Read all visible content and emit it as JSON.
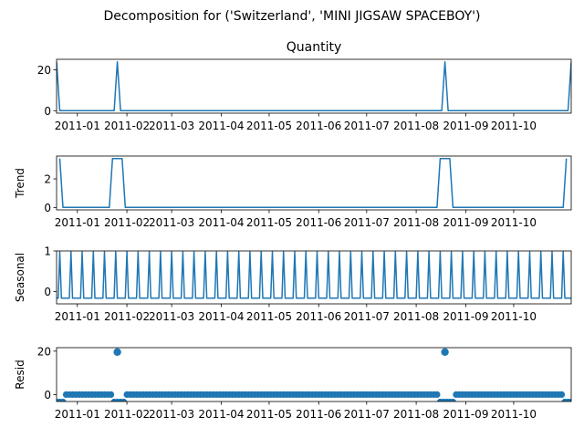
{
  "chart_data": {
    "type": "line",
    "title": "Decomposition for ('Switzerland', 'MINI JIGSAW SPACEBOY')",
    "x_tick_labels": [
      "2011-01",
      "2011-02",
      "2011-03",
      "2011-04",
      "2011-05",
      "2011-06",
      "2011-07",
      "2011-08",
      "2011-09",
      "2011-10"
    ],
    "x_tick_dates": [
      "2011-01-01",
      "2011-02-01",
      "2011-03-01",
      "2011-04-01",
      "2011-05-01",
      "2011-06-01",
      "2011-07-01",
      "2011-08-01",
      "2011-09-01",
      "2011-10-01"
    ],
    "xlim": [
      "2010-12-19",
      "2011-11-06"
    ],
    "color": "#1f77b4",
    "panels": [
      {
        "name": "observed",
        "title": "Quantity",
        "ylabel": "",
        "kind": "line",
        "ylim": [
          -1.2,
          25.2
        ],
        "yticks": [
          0,
          20
        ],
        "points": [
          [
            "2010-12-19",
            24
          ],
          [
            "2010-12-21",
            0
          ],
          [
            "2011-01-24",
            0
          ],
          [
            "2011-01-26",
            24
          ],
          [
            "2011-01-28",
            0
          ],
          [
            "2011-08-17",
            0
          ],
          [
            "2011-08-19",
            24
          ],
          [
            "2011-08-21",
            0
          ],
          [
            "2011-11-04",
            0
          ],
          [
            "2011-11-06",
            24
          ]
        ]
      },
      {
        "name": "trend",
        "title": "",
        "ylabel": "Trend",
        "kind": "line",
        "ylim": [
          -0.17,
          3.6
        ],
        "yticks": [
          0,
          2
        ],
        "points": [
          [
            "2010-12-21",
            3.43
          ],
          [
            "2010-12-23",
            0
          ],
          [
            "2011-01-21",
            0
          ],
          [
            "2011-01-23",
            3.43
          ],
          [
            "2011-01-29",
            3.43
          ],
          [
            "2011-01-31",
            0
          ],
          [
            "2011-08-14",
            0
          ],
          [
            "2011-08-16",
            3.43
          ],
          [
            "2011-08-22",
            3.43
          ],
          [
            "2011-08-24",
            0
          ],
          [
            "2011-11-01",
            0
          ],
          [
            "2011-11-03",
            3.43
          ]
        ]
      },
      {
        "name": "seasonal",
        "title": "",
        "ylabel": "Seasonal",
        "kind": "line",
        "ylim": [
          -0.3,
          1.0
        ],
        "yticks": [
          0,
          1
        ],
        "period_days": 7,
        "first_peak": "2010-12-21",
        "peak": 0.98,
        "baseline": -0.16
      },
      {
        "name": "resid",
        "title": "",
        "ylabel": "Resid",
        "kind": "scatter",
        "ylim": [
          -3.2,
          21.6
        ],
        "yticks": [
          0,
          20
        ],
        "step_days": 2,
        "baseline": 0,
        "dips": [
          [
            "2010-12-19",
            "2010-12-23",
            -3.4
          ],
          [
            "2011-01-23",
            "2011-01-31",
            -3.4
          ],
          [
            "2011-08-16",
            "2011-08-24",
            -3.4
          ],
          [
            "2011-11-02",
            "2011-11-06",
            -3.4
          ]
        ],
        "outliers": [
          [
            "2011-01-26",
            19.6
          ],
          [
            "2011-08-19",
            19.6
          ]
        ]
      }
    ]
  }
}
